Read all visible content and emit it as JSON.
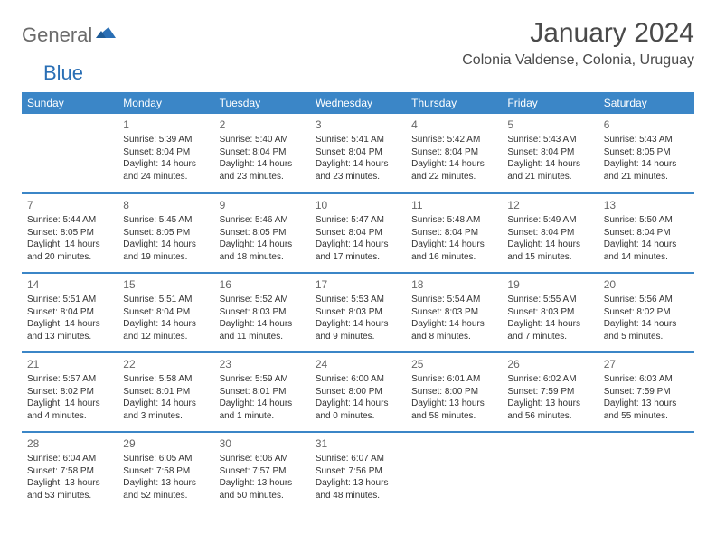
{
  "brand": {
    "general": "General",
    "blue": "Blue"
  },
  "title": "January 2024",
  "location": "Colonia Valdense, Colonia, Uruguay",
  "colors": {
    "header_bg": "#3b86c7",
    "header_text": "#ffffff",
    "divider": "#3b86c7",
    "logo_gray": "#6b6b6b",
    "logo_blue": "#2a6fb5",
    "text": "#333333"
  },
  "weekdays": [
    "Sunday",
    "Monday",
    "Tuesday",
    "Wednesday",
    "Thursday",
    "Friday",
    "Saturday"
  ],
  "weeks": [
    [
      null,
      {
        "day": "1",
        "sunrise": "Sunrise: 5:39 AM",
        "sunset": "Sunset: 8:04 PM",
        "daylight": "Daylight: 14 hours and 24 minutes."
      },
      {
        "day": "2",
        "sunrise": "Sunrise: 5:40 AM",
        "sunset": "Sunset: 8:04 PM",
        "daylight": "Daylight: 14 hours and 23 minutes."
      },
      {
        "day": "3",
        "sunrise": "Sunrise: 5:41 AM",
        "sunset": "Sunset: 8:04 PM",
        "daylight": "Daylight: 14 hours and 23 minutes."
      },
      {
        "day": "4",
        "sunrise": "Sunrise: 5:42 AM",
        "sunset": "Sunset: 8:04 PM",
        "daylight": "Daylight: 14 hours and 22 minutes."
      },
      {
        "day": "5",
        "sunrise": "Sunrise: 5:43 AM",
        "sunset": "Sunset: 8:04 PM",
        "daylight": "Daylight: 14 hours and 21 minutes."
      },
      {
        "day": "6",
        "sunrise": "Sunrise: 5:43 AM",
        "sunset": "Sunset: 8:05 PM",
        "daylight": "Daylight: 14 hours and 21 minutes."
      }
    ],
    [
      {
        "day": "7",
        "sunrise": "Sunrise: 5:44 AM",
        "sunset": "Sunset: 8:05 PM",
        "daylight": "Daylight: 14 hours and 20 minutes."
      },
      {
        "day": "8",
        "sunrise": "Sunrise: 5:45 AM",
        "sunset": "Sunset: 8:05 PM",
        "daylight": "Daylight: 14 hours and 19 minutes."
      },
      {
        "day": "9",
        "sunrise": "Sunrise: 5:46 AM",
        "sunset": "Sunset: 8:05 PM",
        "daylight": "Daylight: 14 hours and 18 minutes."
      },
      {
        "day": "10",
        "sunrise": "Sunrise: 5:47 AM",
        "sunset": "Sunset: 8:04 PM",
        "daylight": "Daylight: 14 hours and 17 minutes."
      },
      {
        "day": "11",
        "sunrise": "Sunrise: 5:48 AM",
        "sunset": "Sunset: 8:04 PM",
        "daylight": "Daylight: 14 hours and 16 minutes."
      },
      {
        "day": "12",
        "sunrise": "Sunrise: 5:49 AM",
        "sunset": "Sunset: 8:04 PM",
        "daylight": "Daylight: 14 hours and 15 minutes."
      },
      {
        "day": "13",
        "sunrise": "Sunrise: 5:50 AM",
        "sunset": "Sunset: 8:04 PM",
        "daylight": "Daylight: 14 hours and 14 minutes."
      }
    ],
    [
      {
        "day": "14",
        "sunrise": "Sunrise: 5:51 AM",
        "sunset": "Sunset: 8:04 PM",
        "daylight": "Daylight: 14 hours and 13 minutes."
      },
      {
        "day": "15",
        "sunrise": "Sunrise: 5:51 AM",
        "sunset": "Sunset: 8:04 PM",
        "daylight": "Daylight: 14 hours and 12 minutes."
      },
      {
        "day": "16",
        "sunrise": "Sunrise: 5:52 AM",
        "sunset": "Sunset: 8:03 PM",
        "daylight": "Daylight: 14 hours and 11 minutes."
      },
      {
        "day": "17",
        "sunrise": "Sunrise: 5:53 AM",
        "sunset": "Sunset: 8:03 PM",
        "daylight": "Daylight: 14 hours and 9 minutes."
      },
      {
        "day": "18",
        "sunrise": "Sunrise: 5:54 AM",
        "sunset": "Sunset: 8:03 PM",
        "daylight": "Daylight: 14 hours and 8 minutes."
      },
      {
        "day": "19",
        "sunrise": "Sunrise: 5:55 AM",
        "sunset": "Sunset: 8:03 PM",
        "daylight": "Daylight: 14 hours and 7 minutes."
      },
      {
        "day": "20",
        "sunrise": "Sunrise: 5:56 AM",
        "sunset": "Sunset: 8:02 PM",
        "daylight": "Daylight: 14 hours and 5 minutes."
      }
    ],
    [
      {
        "day": "21",
        "sunrise": "Sunrise: 5:57 AM",
        "sunset": "Sunset: 8:02 PM",
        "daylight": "Daylight: 14 hours and 4 minutes."
      },
      {
        "day": "22",
        "sunrise": "Sunrise: 5:58 AM",
        "sunset": "Sunset: 8:01 PM",
        "daylight": "Daylight: 14 hours and 3 minutes."
      },
      {
        "day": "23",
        "sunrise": "Sunrise: 5:59 AM",
        "sunset": "Sunset: 8:01 PM",
        "daylight": "Daylight: 14 hours and 1 minute."
      },
      {
        "day": "24",
        "sunrise": "Sunrise: 6:00 AM",
        "sunset": "Sunset: 8:00 PM",
        "daylight": "Daylight: 14 hours and 0 minutes."
      },
      {
        "day": "25",
        "sunrise": "Sunrise: 6:01 AM",
        "sunset": "Sunset: 8:00 PM",
        "daylight": "Daylight: 13 hours and 58 minutes."
      },
      {
        "day": "26",
        "sunrise": "Sunrise: 6:02 AM",
        "sunset": "Sunset: 7:59 PM",
        "daylight": "Daylight: 13 hours and 56 minutes."
      },
      {
        "day": "27",
        "sunrise": "Sunrise: 6:03 AM",
        "sunset": "Sunset: 7:59 PM",
        "daylight": "Daylight: 13 hours and 55 minutes."
      }
    ],
    [
      {
        "day": "28",
        "sunrise": "Sunrise: 6:04 AM",
        "sunset": "Sunset: 7:58 PM",
        "daylight": "Daylight: 13 hours and 53 minutes."
      },
      {
        "day": "29",
        "sunrise": "Sunrise: 6:05 AM",
        "sunset": "Sunset: 7:58 PM",
        "daylight": "Daylight: 13 hours and 52 minutes."
      },
      {
        "day": "30",
        "sunrise": "Sunrise: 6:06 AM",
        "sunset": "Sunset: 7:57 PM",
        "daylight": "Daylight: 13 hours and 50 minutes."
      },
      {
        "day": "31",
        "sunrise": "Sunrise: 6:07 AM",
        "sunset": "Sunset: 7:56 PM",
        "daylight": "Daylight: 13 hours and 48 minutes."
      },
      null,
      null,
      null
    ]
  ]
}
